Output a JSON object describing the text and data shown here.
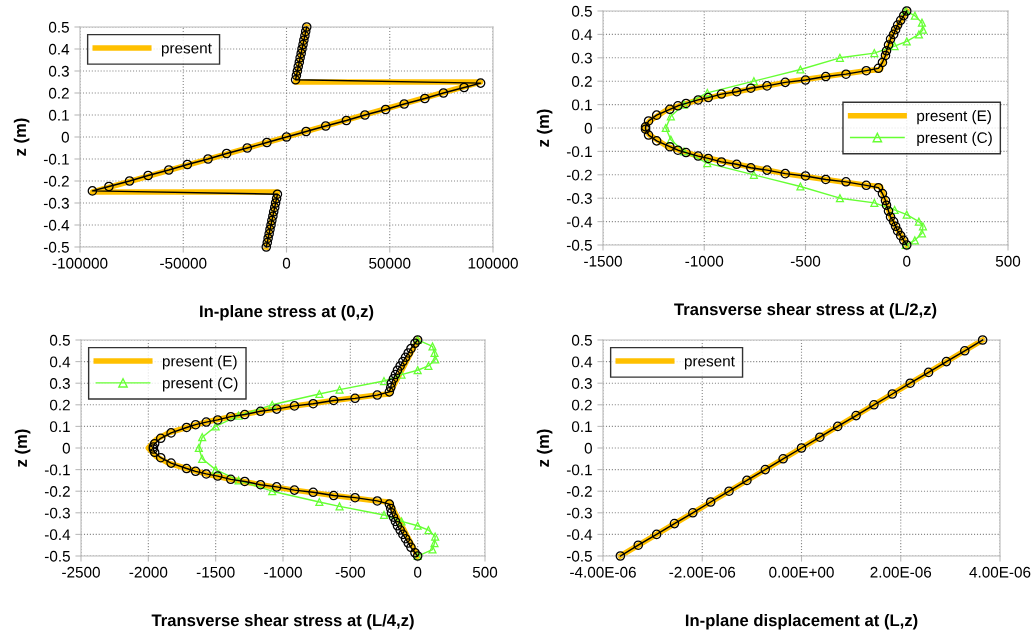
{
  "chart_data": [
    {
      "type": "line",
      "xlabel": "In-plane stress at (0,z)",
      "ylabel": "z (m)",
      "xlim": [
        -100000,
        100000
      ],
      "xticks": [
        -100000,
        -50000,
        0,
        50000,
        100000
      ],
      "ylim": [
        -0.5,
        0.5
      ],
      "yticks": [
        -0.5,
        -0.4,
        -0.3,
        -0.2,
        -0.1,
        0,
        0.1,
        0.2,
        0.3,
        0.4,
        0.5
      ],
      "grid": true,
      "legend": "top left",
      "line_style": "solid",
      "series": [
        {
          "name": "present",
          "color": "#ffc000",
          "marker": "none",
          "x": [
            -9800,
            -4400,
            -94000,
            94000,
            4400,
            9800
          ],
          "values": [
            -0.5,
            -0.25,
            -0.25,
            0.25,
            0.25,
            0.5
          ]
        },
        {
          "color": "#000000",
          "marker": "circle",
          "x": [
            -9800,
            -9300,
            -8900,
            -8400,
            -8000,
            -7500,
            -7100,
            -6600,
            -6200,
            -5700,
            -5300,
            -4800,
            -4400,
            -94000,
            -86000,
            -76000,
            -67000,
            -57000,
            -48000,
            -38000,
            -29000,
            -19000,
            -9500,
            0,
            9500,
            19000,
            29000,
            38000,
            48000,
            57000,
            67000,
            76000,
            86000,
            94000,
            4400,
            4800,
            5300,
            5700,
            6200,
            6600,
            7100,
            7500,
            8000,
            8400,
            8900,
            9300,
            9800
          ],
          "values": [
            -0.5,
            -0.48,
            -0.46,
            -0.44,
            -0.42,
            -0.4,
            -0.38,
            -0.36,
            -0.34,
            -0.32,
            -0.3,
            -0.28,
            -0.26,
            -0.245,
            -0.225,
            -0.2,
            -0.175,
            -0.15,
            -0.125,
            -0.1,
            -0.075,
            -0.05,
            -0.025,
            0,
            0.025,
            0.05,
            0.075,
            0.1,
            0.125,
            0.15,
            0.175,
            0.2,
            0.225,
            0.245,
            0.26,
            0.28,
            0.3,
            0.32,
            0.34,
            0.36,
            0.38,
            0.4,
            0.42,
            0.44,
            0.46,
            0.48,
            0.5
          ]
        }
      ]
    },
    {
      "type": "line",
      "xlabel": "Transverse shear stress at (L/2,z)",
      "ylabel": "z (m)",
      "xlim": [
        -1500,
        500
      ],
      "xticks": [
        -1500,
        -1000,
        -500,
        0,
        500
      ],
      "ylim": [
        -0.5,
        0.5
      ],
      "yticks": [
        -0.5,
        -0.4,
        -0.3,
        -0.2,
        -0.1,
        0,
        0.1,
        0.2,
        0.3,
        0.4,
        0.5
      ],
      "grid": true,
      "legend": "right",
      "line_style": "solid",
      "series": [
        {
          "name": "present (E)",
          "color": "#ffc000",
          "marker": "none",
          "x": [
            0,
            -70,
            -130,
            -200,
            -400,
            -600,
            -840,
            -1030,
            -1180,
            -1270,
            -1300,
            -1270,
            -1180,
            -1030,
            -840,
            -600,
            -400,
            -200,
            -130,
            -70,
            0
          ],
          "values": [
            0.5,
            0.4,
            0.25,
            0.245,
            0.22,
            0.195,
            0.155,
            0.12,
            0.08,
            0.03,
            0,
            -0.03,
            -0.08,
            -0.12,
            -0.155,
            -0.195,
            -0.22,
            -0.245,
            -0.25,
            -0.4,
            -0.5
          ]
        },
        {
          "name": "present (C)",
          "color": "#66ff33",
          "marker": "triangle",
          "x": [
            -5,
            40,
            75,
            80,
            60,
            0,
            -60,
            -160,
            -330,
            -525,
            -755,
            -985,
            -1100,
            -1165,
            -1190,
            -1165,
            -1100,
            -985,
            -755,
            -525,
            -330,
            -160,
            -60,
            0,
            60,
            80,
            75,
            40,
            -5
          ],
          "values": [
            0.5,
            0.48,
            0.45,
            0.42,
            0.4,
            0.37,
            0.35,
            0.32,
            0.3,
            0.25,
            0.2,
            0.15,
            0.1,
            0.05,
            0,
            -0.05,
            -0.1,
            -0.15,
            -0.2,
            -0.25,
            -0.3,
            -0.32,
            -0.35,
            -0.37,
            -0.4,
            -0.42,
            -0.45,
            -0.48,
            -0.5
          ]
        },
        {
          "color": "#000000",
          "marker": "circle",
          "x": [
            0,
            -15,
            -30,
            -45,
            -55,
            -65,
            -80,
            -90,
            -100,
            -105,
            -120,
            -140,
            -200,
            -300,
            -400,
            -500,
            -600,
            -690,
            -770,
            -840,
            -915,
            -980,
            -1030,
            -1090,
            -1130,
            -1170,
            -1235,
            -1275,
            -1290,
            -1290,
            -1275,
            -1235,
            -1170,
            -1130,
            -1090,
            -1030,
            -980,
            -915,
            -840,
            -770,
            -690,
            -600,
            -500,
            -400,
            -300,
            -200,
            -140,
            -120,
            -105,
            -100,
            -90,
            -80,
            -65,
            -55,
            -45,
            -30,
            -15,
            0
          ],
          "values": [
            0.5,
            0.48,
            0.46,
            0.44,
            0.42,
            0.4,
            0.38,
            0.355,
            0.33,
            0.31,
            0.28,
            0.255,
            0.245,
            0.23,
            0.22,
            0.205,
            0.195,
            0.18,
            0.17,
            0.155,
            0.145,
            0.13,
            0.12,
            0.105,
            0.095,
            0.08,
            0.055,
            0.03,
            0.005,
            -0.005,
            -0.03,
            -0.055,
            -0.08,
            -0.095,
            -0.105,
            -0.12,
            -0.13,
            -0.145,
            -0.155,
            -0.17,
            -0.18,
            -0.195,
            -0.205,
            -0.22,
            -0.23,
            -0.245,
            -0.255,
            -0.28,
            -0.31,
            -0.33,
            -0.355,
            -0.38,
            -0.4,
            -0.42,
            -0.44,
            -0.46,
            -0.48,
            -0.5
          ]
        }
      ]
    },
    {
      "type": "line",
      "xlabel": "Transverse shear stress at (L/4,z)",
      "ylabel": "z (m)",
      "xlim": [
        -2500,
        500
      ],
      "xticks": [
        -2500,
        -2000,
        -1500,
        -1000,
        -500,
        0,
        500
      ],
      "ylim": [
        -0.5,
        0.5
      ],
      "yticks": [
        -0.5,
        -0.4,
        -0.3,
        -0.2,
        -0.1,
        0,
        0.1,
        0.2,
        0.3,
        0.4,
        0.5
      ],
      "grid": true,
      "legend": "top left",
      "line_style": "solid",
      "series": [
        {
          "name": "present (E)",
          "color": "#ffc000",
          "marker": "none",
          "x": [
            0,
            -211,
            -300,
            -624,
            -915,
            -1167,
            -1388,
            -1570,
            -1716,
            -1850,
            -1940,
            -2000,
            -1940,
            -1850,
            -1716,
            -1570,
            -1388,
            -1167,
            -915,
            -624,
            -300,
            -211,
            0
          ],
          "values": [
            0.5,
            0.25,
            0.245,
            0.22,
            0.195,
            0.17,
            0.145,
            0.12,
            0.095,
            0.07,
            0.04,
            0,
            -0.04,
            -0.07,
            -0.095,
            -0.12,
            -0.145,
            -0.17,
            -0.195,
            -0.22,
            -0.245,
            -0.25,
            -0.5
          ]
        },
        {
          "name": "present (C)",
          "color": "#66ff33",
          "marker": "triangle",
          "x": [
            0,
            110,
            125,
            130,
            80,
            0,
            -120,
            -250,
            -580,
            -730,
            -1080,
            -1330,
            -1500,
            -1600,
            -1625,
            -1600,
            -1500,
            -1330,
            -1080,
            -730,
            -580,
            -250,
            -120,
            0,
            80,
            130,
            125,
            110,
            0
          ],
          "values": [
            0.5,
            0.47,
            0.44,
            0.41,
            0.38,
            0.36,
            0.34,
            0.31,
            0.27,
            0.25,
            0.2,
            0.15,
            0.1,
            0.05,
            0,
            -0.05,
            -0.1,
            -0.15,
            -0.2,
            -0.25,
            -0.27,
            -0.31,
            -0.34,
            -0.36,
            -0.38,
            -0.41,
            -0.44,
            -0.47,
            -0.5
          ]
        },
        {
          "color": "#000000",
          "marker": "circle",
          "x": [
            0,
            -20,
            -50,
            -70,
            -90,
            -110,
            -130,
            -150,
            -165,
            -180,
            -195,
            -200,
            -210,
            -300,
            -465,
            -624,
            -776,
            -915,
            -1047,
            -1167,
            -1284,
            -1388,
            -1485,
            -1570,
            -1649,
            -1716,
            -1831,
            -1908,
            -1953,
            -1963,
            -1963,
            -1953,
            -1908,
            -1831,
            -1716,
            -1649,
            -1570,
            -1485,
            -1388,
            -1284,
            -1167,
            -1047,
            -915,
            -776,
            -624,
            -465,
            -300,
            -210,
            -200,
            -195,
            -180,
            -165,
            -150,
            -130,
            -110,
            -90,
            -70,
            -50,
            -20,
            0
          ],
          "values": [
            0.5,
            0.485,
            0.46,
            0.44,
            0.42,
            0.4,
            0.38,
            0.36,
            0.34,
            0.32,
            0.3,
            0.28,
            0.26,
            0.245,
            0.23,
            0.22,
            0.205,
            0.195,
            0.18,
            0.17,
            0.155,
            0.145,
            0.13,
            0.12,
            0.108,
            0.095,
            0.07,
            0.045,
            0.02,
            0.005,
            -0.005,
            -0.02,
            -0.045,
            -0.07,
            -0.095,
            -0.108,
            -0.12,
            -0.13,
            -0.145,
            -0.155,
            -0.17,
            -0.18,
            -0.195,
            -0.205,
            -0.22,
            -0.23,
            -0.245,
            -0.26,
            -0.28,
            -0.3,
            -0.32,
            -0.34,
            -0.36,
            -0.38,
            -0.4,
            -0.42,
            -0.44,
            -0.46,
            -0.485,
            -0.5
          ]
        }
      ]
    },
    {
      "type": "line",
      "xlabel": "In-plane displacement at (L,z)",
      "ylabel": "z (m)",
      "xlim": [
        -4e-06,
        4e-06
      ],
      "xticks": [
        {
          "value": -4e-06,
          "label": "-4.00E-06"
        },
        {
          "value": -2e-06,
          "label": "-2.00E-06"
        },
        {
          "value": 0,
          "label": "0.00E+00"
        },
        {
          "value": 2e-06,
          "label": "2.00E-06"
        },
        {
          "value": 4e-06,
          "label": "4.00E-06"
        }
      ],
      "ylim": [
        -0.5,
        0.5
      ],
      "yticks": [
        -0.5,
        -0.4,
        -0.3,
        -0.2,
        -0.1,
        0,
        0.1,
        0.2,
        0.3,
        0.4,
        0.5
      ],
      "grid": true,
      "legend": "top left",
      "line_style": "solid",
      "series": [
        {
          "name": "present",
          "color": "#ffc000",
          "marker": "none",
          "x": [
            -3.65e-06,
            3.65e-06
          ],
          "values": [
            -0.5,
            0.5
          ]
        },
        {
          "color": "#000000",
          "marker": "circle",
          "x": [
            -3.65e-06,
            -3.29e-06,
            -2.92e-06,
            -2.56e-06,
            -2.19e-06,
            -1.83e-06,
            -1.46e-06,
            -1.1e-06,
            -7.3e-07,
            -3.7e-07,
            0,
            3.7e-07,
            7.3e-07,
            1.1e-06,
            1.46e-06,
            1.83e-06,
            2.19e-06,
            2.56e-06,
            2.92e-06,
            3.29e-06,
            3.65e-06
          ],
          "values": [
            -0.5,
            -0.45,
            -0.4,
            -0.35,
            -0.3,
            -0.25,
            -0.2,
            -0.15,
            -0.1,
            -0.05,
            0,
            0.05,
            0.1,
            0.15,
            0.2,
            0.25,
            0.3,
            0.35,
            0.4,
            0.45,
            0.5
          ]
        }
      ]
    }
  ]
}
